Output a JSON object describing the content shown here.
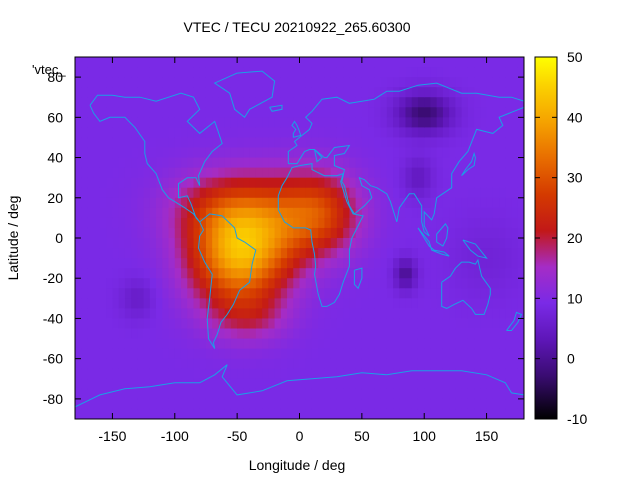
{
  "title": "VTEC / TECU 20210922_265.60300",
  "chart_data": {
    "type": "heatmap",
    "title": "VTEC / TECU 20210922_265.60300",
    "xlabel": "Longitude / deg",
    "ylabel": "Latitude / deg",
    "xlim": [
      -180,
      180
    ],
    "ylim": [
      -90,
      90
    ],
    "x_ticks": [
      -150,
      -100,
      -50,
      0,
      50,
      100,
      150
    ],
    "y_ticks": [
      -80,
      -60,
      -40,
      -20,
      0,
      20,
      40,
      60,
      80
    ],
    "colorbar": {
      "range": [
        -10,
        50
      ],
      "ticks": [
        -10,
        0,
        10,
        20,
        30,
        40,
        50
      ]
    },
    "legend_label": "'vtec_",
    "coastline_color": "#1aa0e6",
    "grid": false
  }
}
